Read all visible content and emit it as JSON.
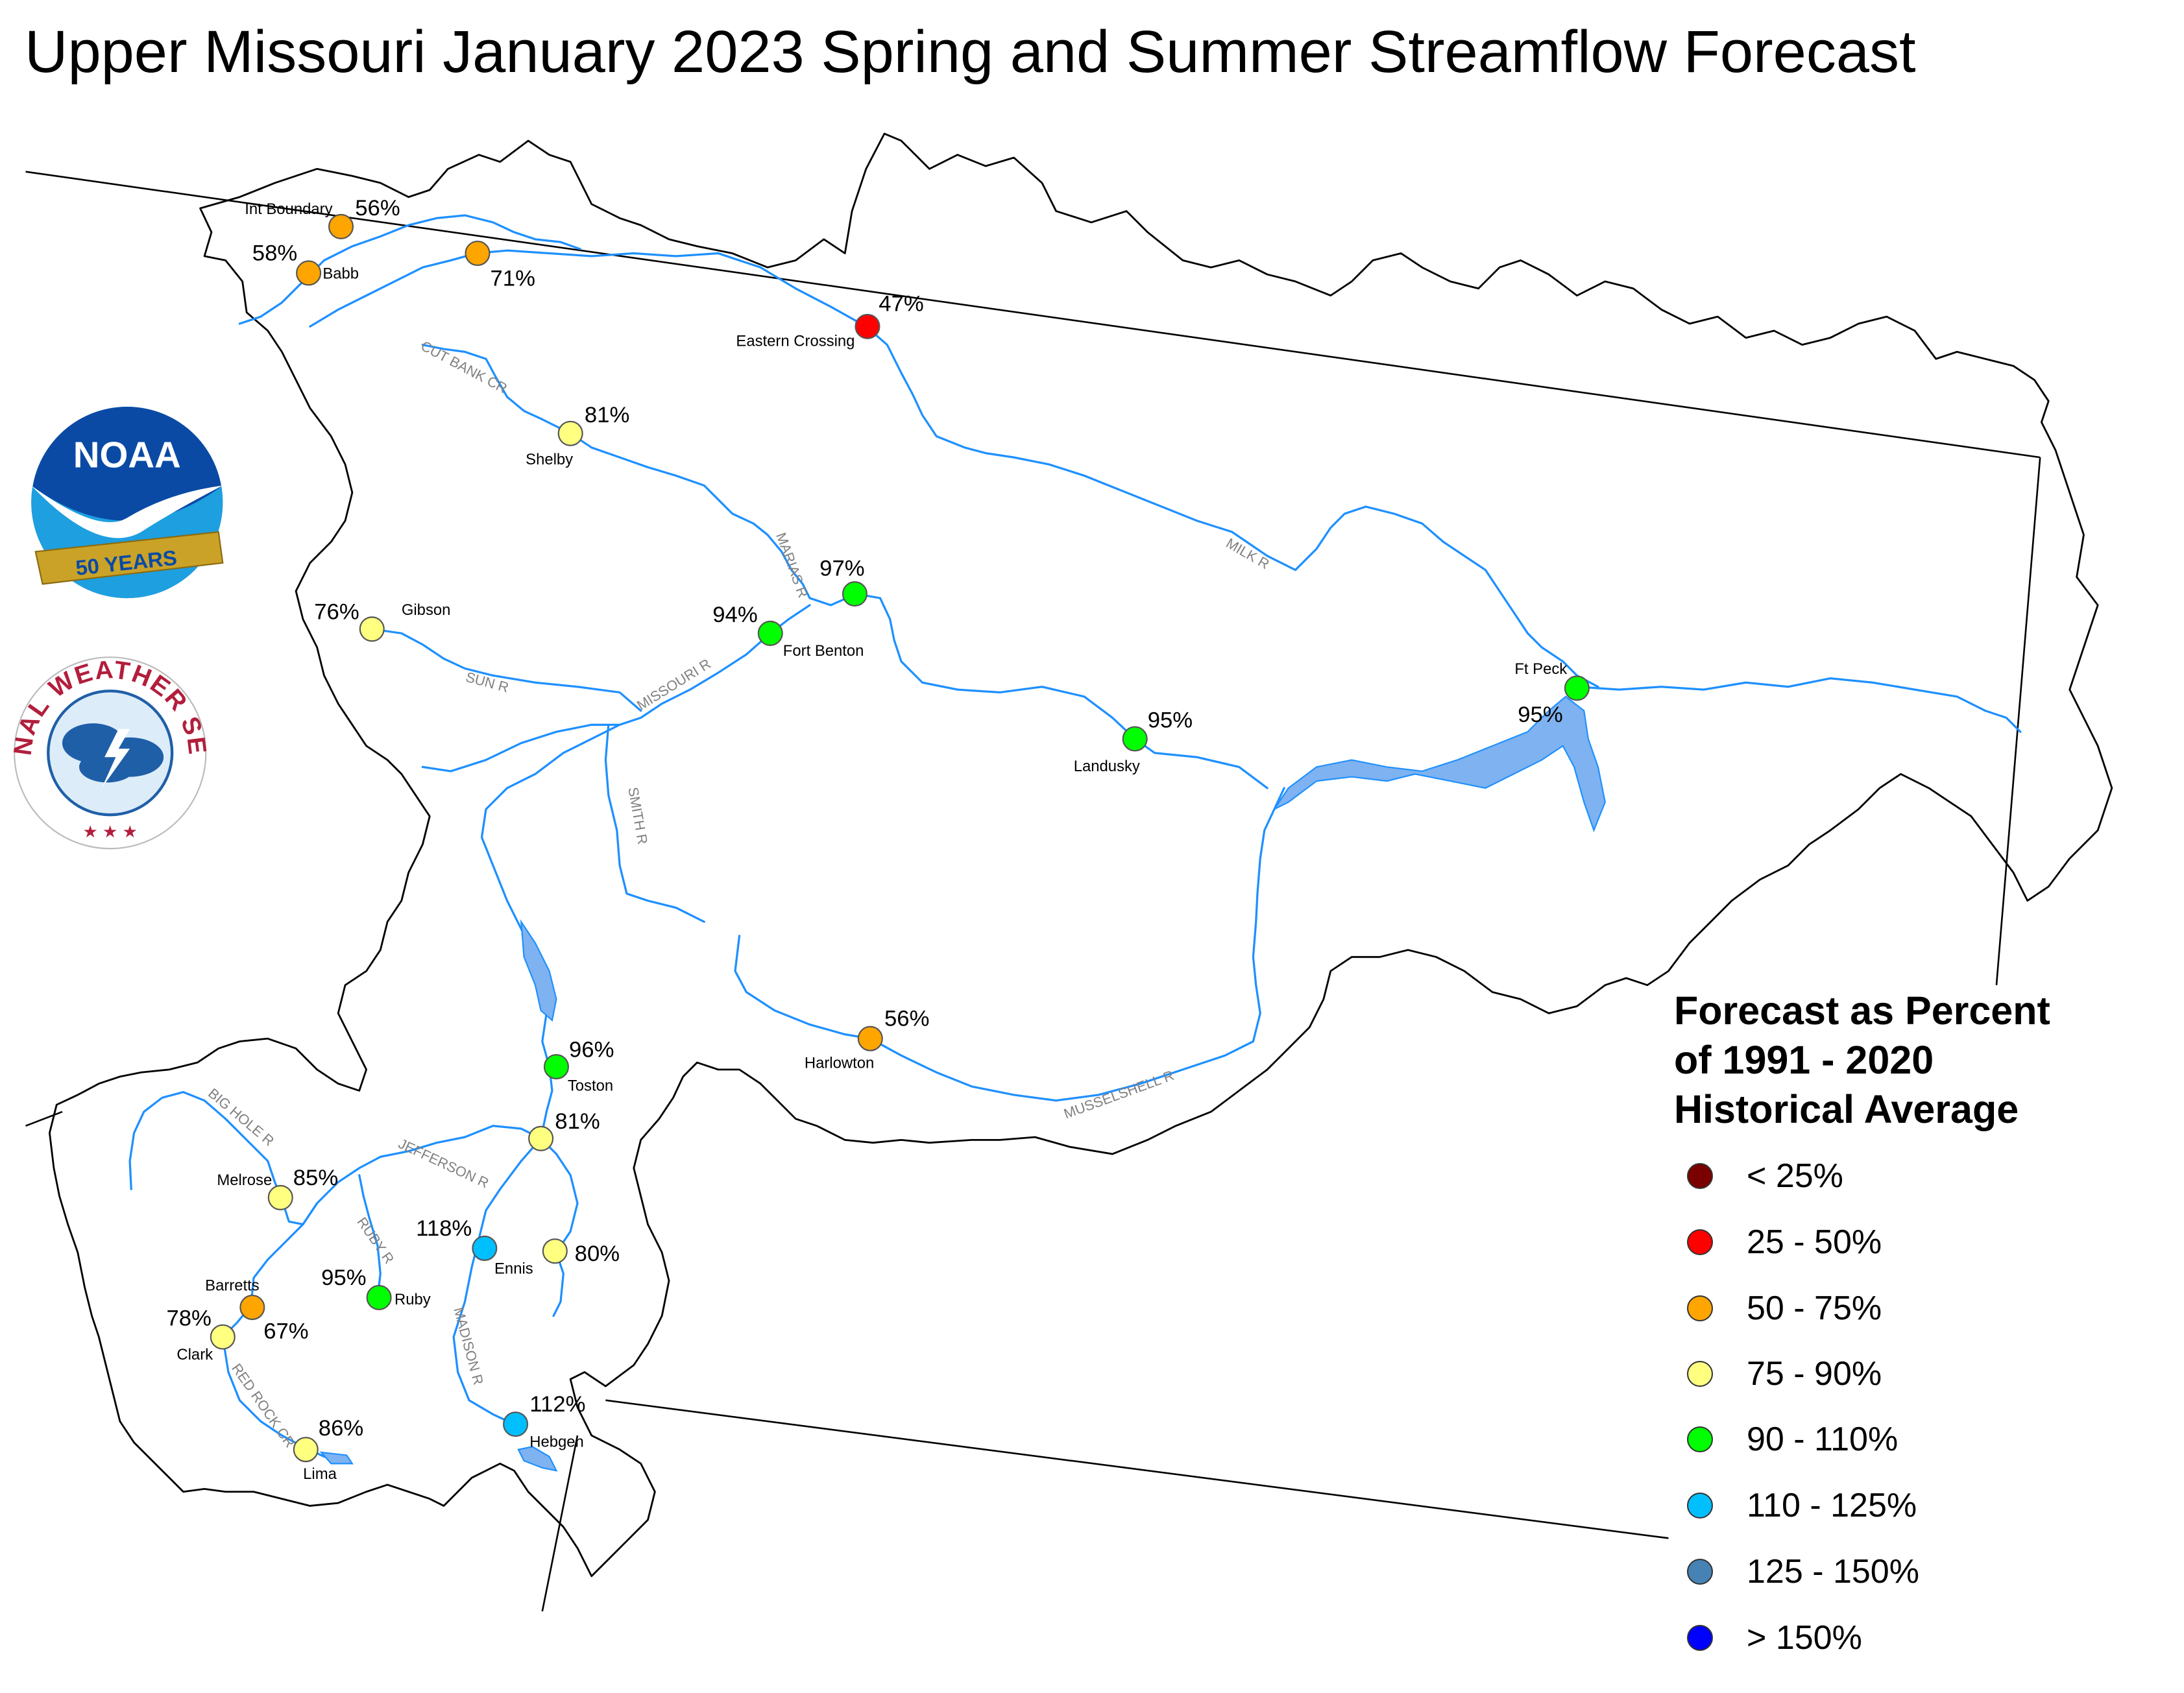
{
  "title": "Upper Missouri January 2023 Spring and Summer Streamflow Forecast",
  "legend": {
    "title_lines": [
      "Forecast as Percent",
      "of 1991 - 2020",
      "Historical Average"
    ],
    "items": [
      {
        "label": "< 25%",
        "color": "#7a0000"
      },
      {
        "label": "25 - 50%",
        "color": "#ff0000"
      },
      {
        "label": "50 - 75%",
        "color": "#ffa500"
      },
      {
        "label": "75 - 90%",
        "color": "#ffff80"
      },
      {
        "label": "90 - 110%",
        "color": "#00ff00"
      },
      {
        "label": "110 - 125%",
        "color": "#00bfff"
      },
      {
        "label": "125 - 150%",
        "color": "#4682b4"
      },
      {
        "label": "> 150%",
        "color": "#0000ff"
      }
    ]
  },
  "logos": {
    "noaa": {
      "text": "NOAA",
      "banner": "50 YEARS"
    },
    "nws": {
      "text": "NATIONAL WEATHER SERVICE"
    }
  },
  "rivers": [
    "CUT BANK CR",
    "MARIAS R",
    "MILK R",
    "SUN R",
    "MISSOURI R",
    "SMITH R",
    "MUSSELSHELL R",
    "BIG HOLE R",
    "JEFFERSON R",
    "RUBY R",
    "MADISON R",
    "RED ROCK CR"
  ],
  "stations": [
    {
      "name": "Int Boundary",
      "pct": "56%",
      "category": "50 - 75%"
    },
    {
      "name": "Babb",
      "pct": "58%",
      "category": "50 - 75%"
    },
    {
      "name": "",
      "pct": "71%",
      "category": "50 - 75%"
    },
    {
      "name": "Eastern Crossing",
      "pct": "47%",
      "category": "25 - 50%"
    },
    {
      "name": "Shelby",
      "pct": "81%",
      "category": "75 - 90%"
    },
    {
      "name": "Gibson",
      "pct": "76%",
      "category": "75 - 90%"
    },
    {
      "name": "",
      "pct": "97%",
      "category": "90 - 110%"
    },
    {
      "name": "Fort Benton",
      "pct": "94%",
      "category": "90 - 110%"
    },
    {
      "name": "Landusky",
      "pct": "95%",
      "category": "90 - 110%"
    },
    {
      "name": "Ft Peck",
      "pct": "95%",
      "category": "90 - 110%"
    },
    {
      "name": "Harlowton",
      "pct": "56%",
      "category": "50 - 75%"
    },
    {
      "name": "Toston",
      "pct": "96%",
      "category": "90 - 110%"
    },
    {
      "name": "",
      "pct": "81%",
      "category": "75 - 90%"
    },
    {
      "name": "Melrose",
      "pct": "85%",
      "category": "75 - 90%"
    },
    {
      "name": "Ennis",
      "pct": "118%",
      "category": "110 - 125%"
    },
    {
      "name": "",
      "pct": "80%",
      "category": "75 - 90%"
    },
    {
      "name": "Ruby",
      "pct": "95%",
      "category": "90 - 110%"
    },
    {
      "name": "Barretts",
      "pct": "67%",
      "category": "50 - 75%"
    },
    {
      "name": "Clark",
      "pct": "78%",
      "category": "75 - 90%"
    },
    {
      "name": "Lima",
      "pct": "86%",
      "category": "75 - 90%"
    },
    {
      "name": "Hebgen",
      "pct": "112%",
      "category": "110 - 125%"
    }
  ]
}
